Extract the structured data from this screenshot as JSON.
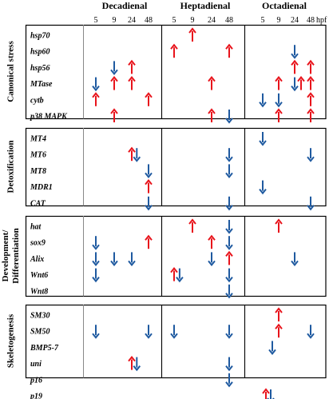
{
  "columns": [
    {
      "label": "Decadienal"
    },
    {
      "label": "Heptadienal"
    },
    {
      "label": "Octadienal"
    }
  ],
  "hpf_ticks": [
    "5",
    "9",
    "24",
    "48"
  ],
  "hpf_unit": "hpf",
  "colors": {
    "up": "#e8131b",
    "down": "#1f5aa0"
  },
  "sections": [
    {
      "title": "Canonical stress",
      "genes": [
        {
          "name": "hsp70",
          "arrows": [
            {
              "c": 1,
              "t": 1,
              "d": "up"
            }
          ]
        },
        {
          "name": "hsp60",
          "arrows": [
            {
              "c": 1,
              "t": 0,
              "d": "up"
            },
            {
              "c": 1,
              "t": 3,
              "d": "up"
            },
            {
              "c": 2,
              "t": 2,
              "d": "down"
            }
          ]
        },
        {
          "name": "hsp56",
          "arrows": [
            {
              "c": 0,
              "t": 1,
              "d": "down"
            },
            {
              "c": 0,
              "t": 2,
              "d": "up"
            },
            {
              "c": 2,
              "t": 2,
              "d": "up"
            },
            {
              "c": 2,
              "t": 3,
              "d": "up"
            }
          ]
        },
        {
          "name": "MTase",
          "arrows": [
            {
              "c": 0,
              "t": 0,
              "d": "down"
            },
            {
              "c": 0,
              "t": 1,
              "d": "up"
            },
            {
              "c": 0,
              "t": 2,
              "d": "up"
            },
            {
              "c": 1,
              "t": 2,
              "d": "up"
            },
            {
              "c": 2,
              "t": 1,
              "d": "up"
            },
            {
              "c": 2,
              "t": 2,
              "d": "down"
            },
            {
              "c": 2,
              "t": 2.4,
              "d": "up"
            },
            {
              "c": 2,
              "t": 3,
              "d": "up"
            }
          ]
        },
        {
          "name": "cytb",
          "arrows": [
            {
              "c": 0,
              "t": 0,
              "d": "up"
            },
            {
              "c": 0,
              "t": 3,
              "d": "up"
            },
            {
              "c": 2,
              "t": 0,
              "d": "down"
            },
            {
              "c": 2,
              "t": 1,
              "d": "down"
            },
            {
              "c": 2,
              "t": 3,
              "d": "up"
            }
          ]
        },
        {
          "name": "p38 MAPK",
          "arrows": [
            {
              "c": 0,
              "t": 1,
              "d": "up"
            },
            {
              "c": 1,
              "t": 2,
              "d": "up"
            },
            {
              "c": 1,
              "t": 3,
              "d": "down"
            },
            {
              "c": 2,
              "t": 1,
              "d": "up"
            },
            {
              "c": 2,
              "t": 3,
              "d": "up"
            }
          ]
        }
      ]
    },
    {
      "title": "Detoxification",
      "genes": [
        {
          "name": "MT4",
          "arrows": [
            {
              "c": 2,
              "t": 0,
              "d": "down"
            }
          ]
        },
        {
          "name": "MT6",
          "arrows": [
            {
              "c": 0,
              "t": 2,
              "d": "up"
            },
            {
              "c": 0,
              "t": 2.3,
              "d": "down"
            },
            {
              "c": 1,
              "t": 3,
              "d": "down"
            },
            {
              "c": 2,
              "t": 3,
              "d": "down"
            }
          ]
        },
        {
          "name": "MT8",
          "arrows": [
            {
              "c": 0,
              "t": 3,
              "d": "down"
            },
            {
              "c": 1,
              "t": 3,
              "d": "down"
            }
          ]
        },
        {
          "name": "MDR1",
          "arrows": [
            {
              "c": 0,
              "t": 3,
              "d": "up"
            },
            {
              "c": 2,
              "t": 0,
              "d": "down"
            }
          ]
        },
        {
          "name": "CAT",
          "arrows": [
            {
              "c": 0,
              "t": 3,
              "d": "down"
            },
            {
              "c": 1,
              "t": 3,
              "d": "down"
            },
            {
              "c": 2,
              "t": 3,
              "d": "down"
            }
          ]
        }
      ]
    },
    {
      "title": "Development/ Differentiation",
      "genes": [
        {
          "name": "hat",
          "arrows": [
            {
              "c": 1,
              "t": 1,
              "d": "up"
            },
            {
              "c": 1,
              "t": 3,
              "d": "down"
            },
            {
              "c": 2,
              "t": 1,
              "d": "up"
            }
          ]
        },
        {
          "name": "sox9",
          "arrows": [
            {
              "c": 0,
              "t": 0,
              "d": "down"
            },
            {
              "c": 0,
              "t": 3,
              "d": "up"
            },
            {
              "c": 1,
              "t": 2,
              "d": "up"
            },
            {
              "c": 1,
              "t": 3,
              "d": "down"
            }
          ]
        },
        {
          "name": "Alix",
          "arrows": [
            {
              "c": 0,
              "t": 0,
              "d": "down"
            },
            {
              "c": 0,
              "t": 1,
              "d": "down"
            },
            {
              "c": 0,
              "t": 2,
              "d": "down"
            },
            {
              "c": 1,
              "t": 2,
              "d": "down"
            },
            {
              "c": 1,
              "t": 3,
              "d": "up"
            },
            {
              "c": 2,
              "t": 2,
              "d": "down"
            }
          ]
        },
        {
          "name": "Wnt6",
          "arrows": [
            {
              "c": 0,
              "t": 0,
              "d": "down"
            },
            {
              "c": 1,
              "t": 0,
              "d": "up"
            },
            {
              "c": 1,
              "t": 0.3,
              "d": "down"
            },
            {
              "c": 1,
              "t": 3,
              "d": "down"
            }
          ]
        },
        {
          "name": "Wnt8",
          "arrows": [
            {
              "c": 1,
              "t": 3,
              "d": "down"
            }
          ]
        }
      ]
    },
    {
      "title": "Skeletogenesis",
      "genes": [
        {
          "name": "SM30",
          "arrows": [
            {
              "c": 2,
              "t": 1,
              "d": "up"
            }
          ]
        },
        {
          "name": "SM50",
          "arrows": [
            {
              "c": 0,
              "t": 0,
              "d": "down"
            },
            {
              "c": 0,
              "t": 3,
              "d": "down"
            },
            {
              "c": 1,
              "t": 0,
              "d": "down"
            },
            {
              "c": 1,
              "t": 3,
              "d": "down"
            },
            {
              "c": 2,
              "t": 1,
              "d": "up"
            },
            {
              "c": 2,
              "t": 3,
              "d": "down"
            }
          ]
        },
        {
          "name": "BMP5-7",
          "arrows": [
            {
              "c": 2,
              "t": 0.6,
              "d": "down"
            }
          ]
        },
        {
          "name": "uni",
          "arrows": [
            {
              "c": 0,
              "t": 2,
              "d": "up"
            },
            {
              "c": 0,
              "t": 2.3,
              "d": "down"
            },
            {
              "c": 1,
              "t": 3,
              "d": "down"
            }
          ]
        },
        {
          "name": "p16",
          "arrows": [
            {
              "c": 1,
              "t": 3,
              "d": "down"
            }
          ]
        },
        {
          "name": "p19",
          "arrows": [
            {
              "c": 2,
              "t": 0.2,
              "d": "up"
            },
            {
              "c": 2,
              "t": 0.5,
              "d": "down"
            }
          ]
        }
      ]
    }
  ]
}
